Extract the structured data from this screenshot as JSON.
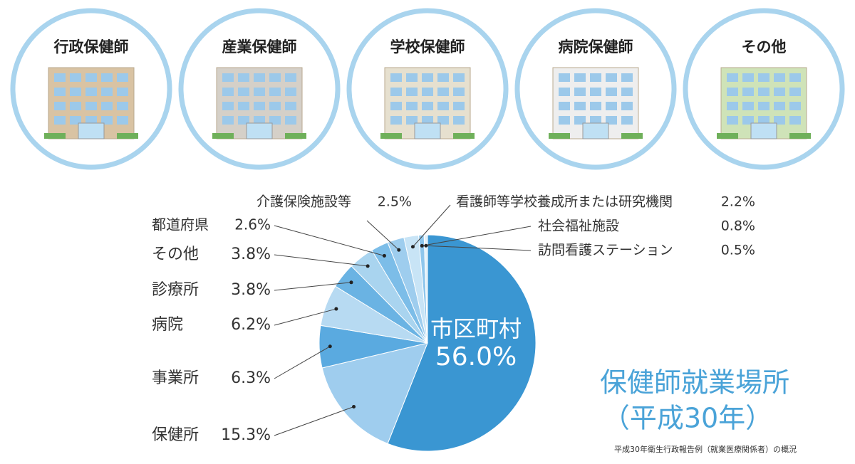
{
  "workplaces": [
    "行政保健師",
    "産業保健師",
    "学校保健師",
    "病院保健師",
    "その他"
  ],
  "chart_data": {
    "type": "pie",
    "title": "保健師就業場所",
    "subtitle": "（平成30年）",
    "note": "平成30年衛生行政報告例（就業医療関係者）の概況",
    "categories": [
      "市区町村",
      "保健所",
      "事業所",
      "病院",
      "診療所",
      "その他",
      "都道府県",
      "介護保険施設等",
      "看護師等学校養成所または研究機関",
      "社会福祉施設",
      "訪問看護ステーション"
    ],
    "values": [
      56.0,
      15.3,
      6.3,
      6.2,
      3.8,
      3.8,
      2.6,
      2.5,
      2.2,
      0.8,
      0.5
    ],
    "value_labels": [
      "56.0%",
      "15.3%",
      "6.3%",
      "6.2%",
      "3.8%",
      "3.8%",
      "2.6%",
      "2.5%",
      "2.2%",
      "0.8%",
      "0.5%"
    ],
    "colors": [
      "#3a96d2",
      "#9fcdee",
      "#5aaae0",
      "#b7daf2",
      "#6ab3e3",
      "#a9d4ef",
      "#7cbde8",
      "#9ecdee",
      "#c8e4f6",
      "#8ec6ec",
      "#e3f1fa"
    ]
  }
}
